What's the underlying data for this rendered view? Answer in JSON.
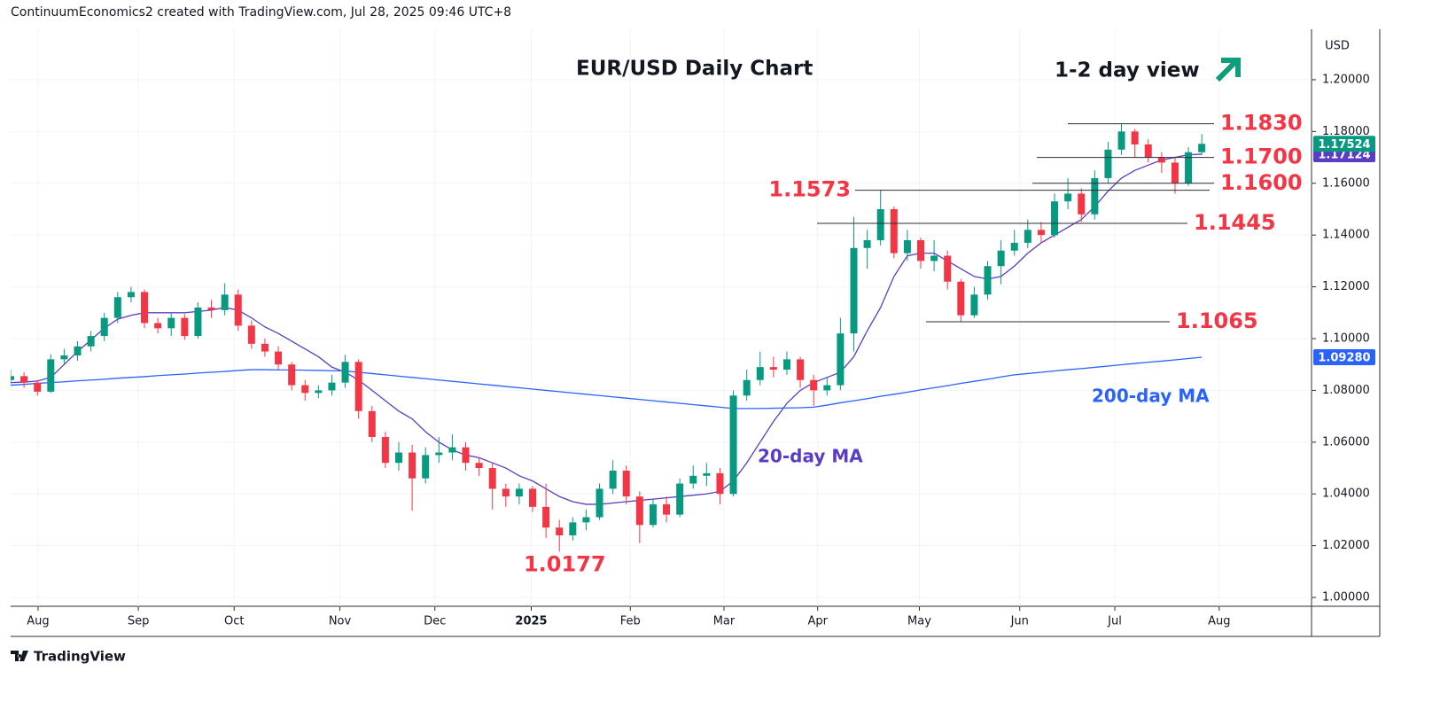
{
  "header": "ContinuumEconomics2 created with TradingView.com, Jul 28, 2025 09:46 UTC+8",
  "footer": "TradingView",
  "chart_data": {
    "type": "candlestick",
    "title": "EUR/USD Daily Chart",
    "view_label": "1-2 day view",
    "currency": "USD",
    "xlim": [
      0,
      97.2
    ],
    "xticks": [
      {
        "value": 2.05,
        "label": "Aug"
      },
      {
        "value": 9.54,
        "label": "Sep"
      },
      {
        "value": 16.7,
        "label": "Oct"
      },
      {
        "value": 24.6,
        "label": "Nov"
      },
      {
        "value": 31.7,
        "label": "Dec"
      },
      {
        "value": 38.9,
        "label": "2025"
      },
      {
        "value": 46.3,
        "label": "Feb"
      },
      {
        "value": 53.3,
        "label": "Mar"
      },
      {
        "value": 60.3,
        "label": "Apr"
      },
      {
        "value": 67.9,
        "label": "May"
      },
      {
        "value": 75.4,
        "label": "Jun"
      },
      {
        "value": 82.5,
        "label": "Jul"
      },
      {
        "value": 90.3,
        "label": "Aug"
      }
    ],
    "ylim": [
      0.9966,
      1.2195
    ],
    "yticks": [
      {
        "value": 1.0,
        "label": "1.00000"
      },
      {
        "value": 1.02,
        "label": "1.02000"
      },
      {
        "value": 1.04,
        "label": "1.04000"
      },
      {
        "value": 1.06,
        "label": "1.06000"
      },
      {
        "value": 1.08,
        "label": "1.08000"
      },
      {
        "value": 1.1,
        "label": "1.10000"
      },
      {
        "value": 1.12,
        "label": "1.12000"
      },
      {
        "value": 1.14,
        "label": "1.14000"
      },
      {
        "value": 1.16,
        "label": "1.16000"
      },
      {
        "value": 1.18,
        "label": "1.18000"
      },
      {
        "value": 1.2,
        "label": "1.20000"
      }
    ],
    "grid": true,
    "candles": {
      "color_up": "#089981",
      "color_down": "#f23645",
      "last_label": "1.17524",
      "open": [
        1.084,
        1.0855,
        1.083,
        1.0795,
        1.092,
        1.0935,
        1.097,
        1.101,
        1.108,
        1.116,
        1.118,
        1.106,
        1.104,
        1.108,
        1.101,
        1.112,
        1.111,
        1.117,
        1.105,
        1.098,
        1.095,
        1.09,
        1.082,
        1.079,
        1.08,
        1.083,
        1.091,
        1.072,
        1.062,
        1.052,
        1.056,
        1.046,
        1.055,
        1.056,
        1.058,
        1.052,
        1.05,
        1.042,
        1.039,
        1.042,
        1.035,
        1.027,
        1.024,
        1.029,
        1.031,
        1.042,
        1.049,
        1.039,
        1.028,
        1.036,
        1.032,
        1.044,
        1.047,
        1.048,
        1.04,
        1.078,
        1.084,
        1.089,
        1.088,
        1.092,
        1.084,
        1.08,
        1.082,
        1.102,
        1.135,
        1.138,
        1.15,
        1.133,
        1.138,
        1.13,
        1.132,
        1.122,
        1.109,
        1.117,
        1.128,
        1.134,
        1.137,
        1.142,
        1.14,
        1.153,
        1.156,
        1.148,
        1.162,
        1.173,
        1.18,
        1.175,
        1.17,
        1.168,
        1.16,
        1.172
      ],
      "high": [
        1.088,
        1.087,
        1.084,
        1.094,
        1.096,
        1.099,
        1.103,
        1.11,
        1.118,
        1.12,
        1.119,
        1.108,
        1.11,
        1.1095,
        1.114,
        1.115,
        1.1214,
        1.119,
        1.107,
        1.1,
        1.097,
        1.091,
        1.084,
        1.082,
        1.086,
        1.0937,
        1.092,
        1.074,
        1.064,
        1.06,
        1.059,
        1.058,
        1.062,
        1.063,
        1.06,
        1.054,
        1.052,
        1.044,
        1.044,
        1.043,
        1.044,
        1.03,
        1.031,
        1.034,
        1.044,
        1.053,
        1.051,
        1.041,
        1.038,
        1.039,
        1.046,
        1.051,
        1.052,
        1.05,
        1.08,
        1.088,
        1.095,
        1.093,
        1.095,
        1.093,
        1.086,
        1.085,
        1.108,
        1.147,
        1.142,
        1.1573,
        1.151,
        1.142,
        1.139,
        1.138,
        1.134,
        1.123,
        1.12,
        1.13,
        1.138,
        1.142,
        1.146,
        1.145,
        1.156,
        1.162,
        1.158,
        1.165,
        1.176,
        1.183,
        1.181,
        1.177,
        1.172,
        1.17,
        1.174,
        1.179
      ],
      "low": [
        1.082,
        1.081,
        1.078,
        1.079,
        1.09,
        1.0915,
        1.095,
        1.099,
        1.106,
        1.114,
        1.104,
        1.102,
        1.101,
        1.0995,
        1.1,
        1.108,
        1.109,
        1.103,
        1.096,
        1.093,
        1.088,
        1.08,
        1.076,
        1.077,
        1.078,
        1.081,
        1.069,
        1.06,
        1.05,
        1.049,
        1.0335,
        1.044,
        1.052,
        1.053,
        1.049,
        1.047,
        1.034,
        1.035,
        1.036,
        1.033,
        1.023,
        1.0177,
        1.022,
        1.026,
        1.03,
        1.04,
        1.036,
        1.021,
        1.027,
        1.029,
        1.031,
        1.042,
        1.043,
        1.036,
        1.039,
        1.076,
        1.082,
        1.085,
        1.086,
        1.081,
        1.074,
        1.078,
        1.08,
        1.095,
        1.127,
        1.136,
        1.131,
        1.13,
        1.127,
        1.126,
        1.119,
        1.1065,
        1.108,
        1.115,
        1.121,
        1.132,
        1.135,
        1.137,
        1.139,
        1.15,
        1.145,
        1.146,
        1.16,
        1.171,
        1.17,
        1.168,
        1.164,
        1.156,
        1.159,
        1.171
      ],
      "close": [
        1.0855,
        1.083,
        1.0795,
        1.092,
        1.0935,
        1.097,
        1.101,
        1.108,
        1.116,
        1.118,
        1.106,
        1.104,
        1.108,
        1.101,
        1.112,
        1.111,
        1.117,
        1.105,
        1.098,
        1.095,
        1.09,
        1.082,
        1.079,
        1.08,
        1.083,
        1.091,
        1.072,
        1.062,
        1.052,
        1.056,
        1.046,
        1.055,
        1.056,
        1.058,
        1.052,
        1.05,
        1.042,
        1.039,
        1.042,
        1.035,
        1.027,
        1.024,
        1.029,
        1.031,
        1.042,
        1.049,
        1.039,
        1.028,
        1.036,
        1.032,
        1.044,
        1.047,
        1.048,
        1.04,
        1.078,
        1.084,
        1.089,
        1.088,
        1.092,
        1.084,
        1.08,
        1.082,
        1.102,
        1.135,
        1.138,
        1.15,
        1.133,
        1.138,
        1.13,
        1.132,
        1.122,
        1.109,
        1.117,
        1.128,
        1.134,
        1.137,
        1.142,
        1.14,
        1.153,
        1.156,
        1.148,
        1.162,
        1.173,
        1.18,
        1.175,
        1.17,
        1.168,
        1.16,
        1.172,
        1.17524
      ]
    },
    "moving_averages": [
      {
        "name": "20-day MA",
        "color": "#5b3cc4",
        "last_label": "1.17124",
        "values": [
          1.083,
          1.0832,
          1.0836,
          1.085,
          1.09,
          1.095,
          1.0995,
          1.104,
          1.1075,
          1.109,
          1.11,
          1.11,
          1.11,
          1.11,
          1.1105,
          1.111,
          1.112,
          1.111,
          1.108,
          1.1045,
          1.102,
          1.099,
          1.096,
          1.093,
          1.089,
          1.087,
          1.084,
          1.08,
          1.076,
          1.072,
          1.069,
          1.064,
          1.06,
          1.057,
          1.055,
          1.054,
          1.052,
          1.05,
          1.047,
          1.045,
          1.042,
          1.039,
          1.037,
          1.036,
          1.036,
          1.0365,
          1.037,
          1.0375,
          1.038,
          1.0385,
          1.039,
          1.0395,
          1.04,
          1.041,
          1.045,
          1.052,
          1.06,
          1.068,
          1.075,
          1.08,
          1.083,
          1.085,
          1.087,
          1.093,
          1.103,
          1.112,
          1.124,
          1.132,
          1.133,
          1.133,
          1.13,
          1.127,
          1.124,
          1.123,
          1.124,
          1.128,
          1.133,
          1.137,
          1.14,
          1.143,
          1.146,
          1.151,
          1.157,
          1.162,
          1.165,
          1.167,
          1.169,
          1.17,
          1.171,
          1.17124
        ]
      },
      {
        "name": "200-day MA",
        "color": "#2962ff",
        "last_label": "1.09280",
        "values": [
          1.082,
          1.0823,
          1.0827,
          1.083,
          1.0833,
          1.0837,
          1.084,
          1.0843,
          1.0847,
          1.085,
          1.0853,
          1.0857,
          1.086,
          1.0863,
          1.0867,
          1.087,
          1.0873,
          1.0877,
          1.088,
          1.088,
          1.0879,
          1.0879,
          1.0878,
          1.0877,
          1.0876,
          1.0875,
          1.087,
          1.0865,
          1.086,
          1.0855,
          1.085,
          1.0845,
          1.084,
          1.0835,
          1.083,
          1.0825,
          1.082,
          1.0815,
          1.081,
          1.0805,
          1.08,
          1.0795,
          1.079,
          1.0785,
          1.078,
          1.0775,
          1.077,
          1.0765,
          1.076,
          1.0755,
          1.075,
          1.0745,
          1.074,
          1.0735,
          1.073,
          1.073,
          1.073,
          1.0731,
          1.0732,
          1.0733,
          1.0735,
          1.0743,
          1.0752,
          1.076,
          1.0768,
          1.0777,
          1.0785,
          1.0793,
          1.0802,
          1.081,
          1.0818,
          1.0827,
          1.0835,
          1.0843,
          1.0852,
          1.086,
          1.0865,
          1.087,
          1.0875,
          1.088,
          1.0884,
          1.0889,
          1.0894,
          1.0899,
          1.0904,
          1.0909,
          1.0913,
          1.0918,
          1.0923,
          1.0928
        ]
      }
    ],
    "levels": [
      {
        "value": 1.183,
        "label": "1.1830"
      },
      {
        "value": 1.17,
        "label": "1.1700"
      },
      {
        "value": 1.16,
        "label": "1.1600"
      },
      {
        "value": 1.1573,
        "label": "1.1573"
      },
      {
        "value": 1.1445,
        "label": "1.1445"
      },
      {
        "value": 1.1065,
        "label": "1.1065"
      }
    ],
    "low_annotation": {
      "value": 1.0177,
      "label": "1.0177"
    }
  }
}
